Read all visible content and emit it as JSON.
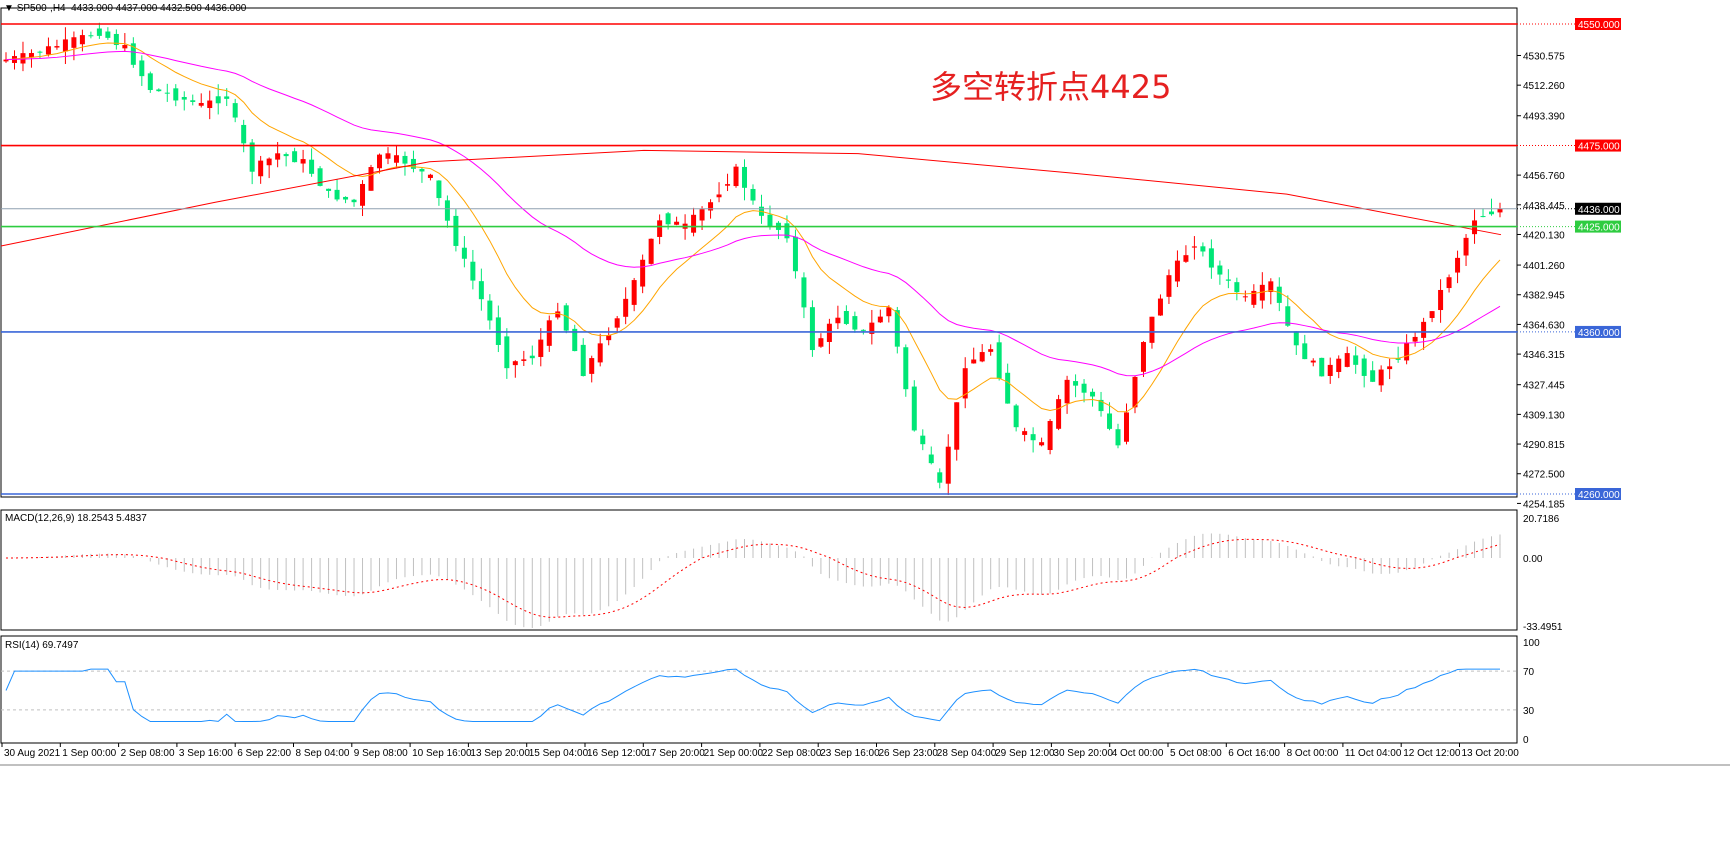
{
  "header": {
    "symbol": "SP500-,H4",
    "ohlc": "4433.000 4437.000 4432.500 4436.000"
  },
  "annotation": "多空转折点4425",
  "colors": {
    "bull": "#ff0000",
    "bear": "#00e676",
    "ma_fast": "#ffa500",
    "ma_mid": "#ff00ff",
    "ma_slow": "#ff0000",
    "macd_hist": "#c0c0c0",
    "macd_signal": "#ff0000",
    "rsi": "#1e90ff"
  },
  "chart_data": [
    {
      "type": "candlestick",
      "title": "SP500-,H4",
      "ylim": [
        4254.185,
        4560
      ],
      "y_ticks": [
        "4530.575",
        "4512.260",
        "4493.390",
        "4456.760",
        "4438.445",
        "4420.130",
        "4401.260",
        "4382.945",
        "4364.630",
        "4346.315",
        "4327.445",
        "4309.130",
        "4290.815",
        "4272.500",
        "4254.185"
      ],
      "x_ticks": [
        "30 Aug 2021",
        "1 Sep 00:00",
        "2 Sep 08:00",
        "3 Sep 16:00",
        "6 Sep 22:00",
        "8 Sep 04:00",
        "9 Sep 08:00",
        "10 Sep 16:00",
        "13 Sep 20:00",
        "15 Sep 04:00",
        "16 Sep 12:00",
        "17 Sep 20:00",
        "21 Sep 00:00",
        "22 Sep 08:00",
        "23 Sep 16:00",
        "26 Sep 23:00",
        "28 Sep 04:00",
        "29 Sep 12:00",
        "30 Sep 20:00",
        "4 Oct 00:00",
        "5 Oct 08:00",
        "6 Oct 16:00",
        "8 Oct 00:00",
        "11 Oct 04:00",
        "12 Oct 12:00",
        "13 Oct 20:00"
      ],
      "closes": [
        4527,
        4530,
        4535,
        4540,
        4545,
        4535,
        4510,
        4505,
        4500,
        4505,
        4460,
        4470,
        4465,
        4445,
        4440,
        4470,
        4465,
        4455,
        4415,
        4380,
        4340,
        4345,
        4375,
        4335,
        4360,
        4390,
        4430,
        4425,
        4440,
        4460,
        4430,
        4420,
        4350,
        4370,
        4360,
        4375,
        4300,
        4265,
        4340,
        4350,
        4300,
        4290,
        4330,
        4320,
        4290,
        4355,
        4395,
        4415,
        4395,
        4380,
        4390,
        4350,
        4335,
        4345,
        4330,
        4345,
        4365,
        4395,
        4430,
        4436
      ],
      "slow_ma": [
        4413,
        4440,
        4465,
        4472,
        4470,
        4458,
        4445,
        4420
      ],
      "levels": [
        {
          "price": 4550,
          "label": "4550.000",
          "color": "#ff0000"
        },
        {
          "price": 4475,
          "label": "4475.000",
          "color": "#ff0000"
        },
        {
          "price": 4436,
          "label": "4436.000",
          "color": "#000000"
        },
        {
          "price": 4425,
          "label": "4425.000",
          "color": "#2ecc40"
        },
        {
          "price": 4360,
          "label": "4360.000",
          "color": "#3a66d8"
        },
        {
          "price": 4260,
          "label": "4260.000",
          "color": "#3a66d8"
        }
      ]
    },
    {
      "type": "bar",
      "title": "MACD(12,26,9) 18.2543 5.4837",
      "ylim": [
        -33.4951,
        20.7186
      ],
      "y_ticks": [
        "20.7186",
        "0.00",
        "-33.4951"
      ]
    },
    {
      "type": "line",
      "title": "RSI(14) 69.7497",
      "ylim": [
        0,
        100
      ],
      "y_ticks": [
        "100",
        "70",
        "30",
        "0"
      ],
      "levels": [
        70,
        30
      ]
    }
  ]
}
